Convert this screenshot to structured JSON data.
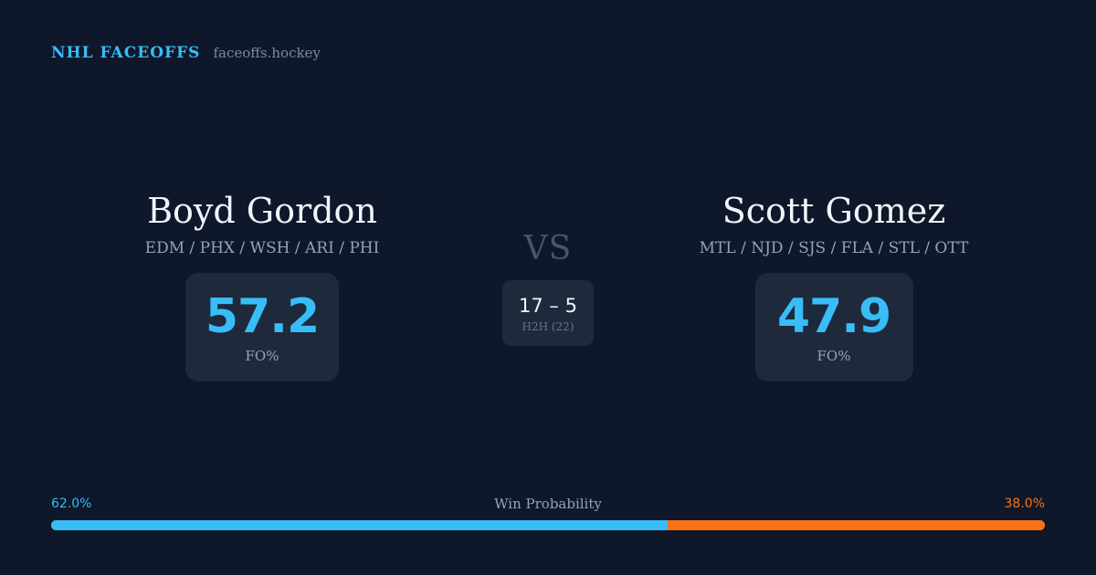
{
  "brand": {
    "name": "NHL FACEOFFS",
    "site": "faceoffs.hockey"
  },
  "matchup": {
    "vs_label": "VS",
    "left_player": {
      "name": "Boyd Gordon",
      "teams": "EDM / PHX / WSH / ARI / PHI",
      "fo_value": "57.2",
      "fo_label": "FO%"
    },
    "right_player": {
      "name": "Scott Gomez",
      "teams": "MTL / NJD / SJS / FLA / STL / OTT",
      "fo_value": "47.9",
      "fo_label": "FO%"
    },
    "h2h": {
      "score": "17 – 5",
      "label": "H2H (22)"
    }
  },
  "win_probability": {
    "title": "Win Probability",
    "left_text": "62.0%",
    "right_text": "38.0%",
    "left_fraction": 0.62,
    "left_color": "#38bdf8",
    "right_color": "#f97316"
  }
}
